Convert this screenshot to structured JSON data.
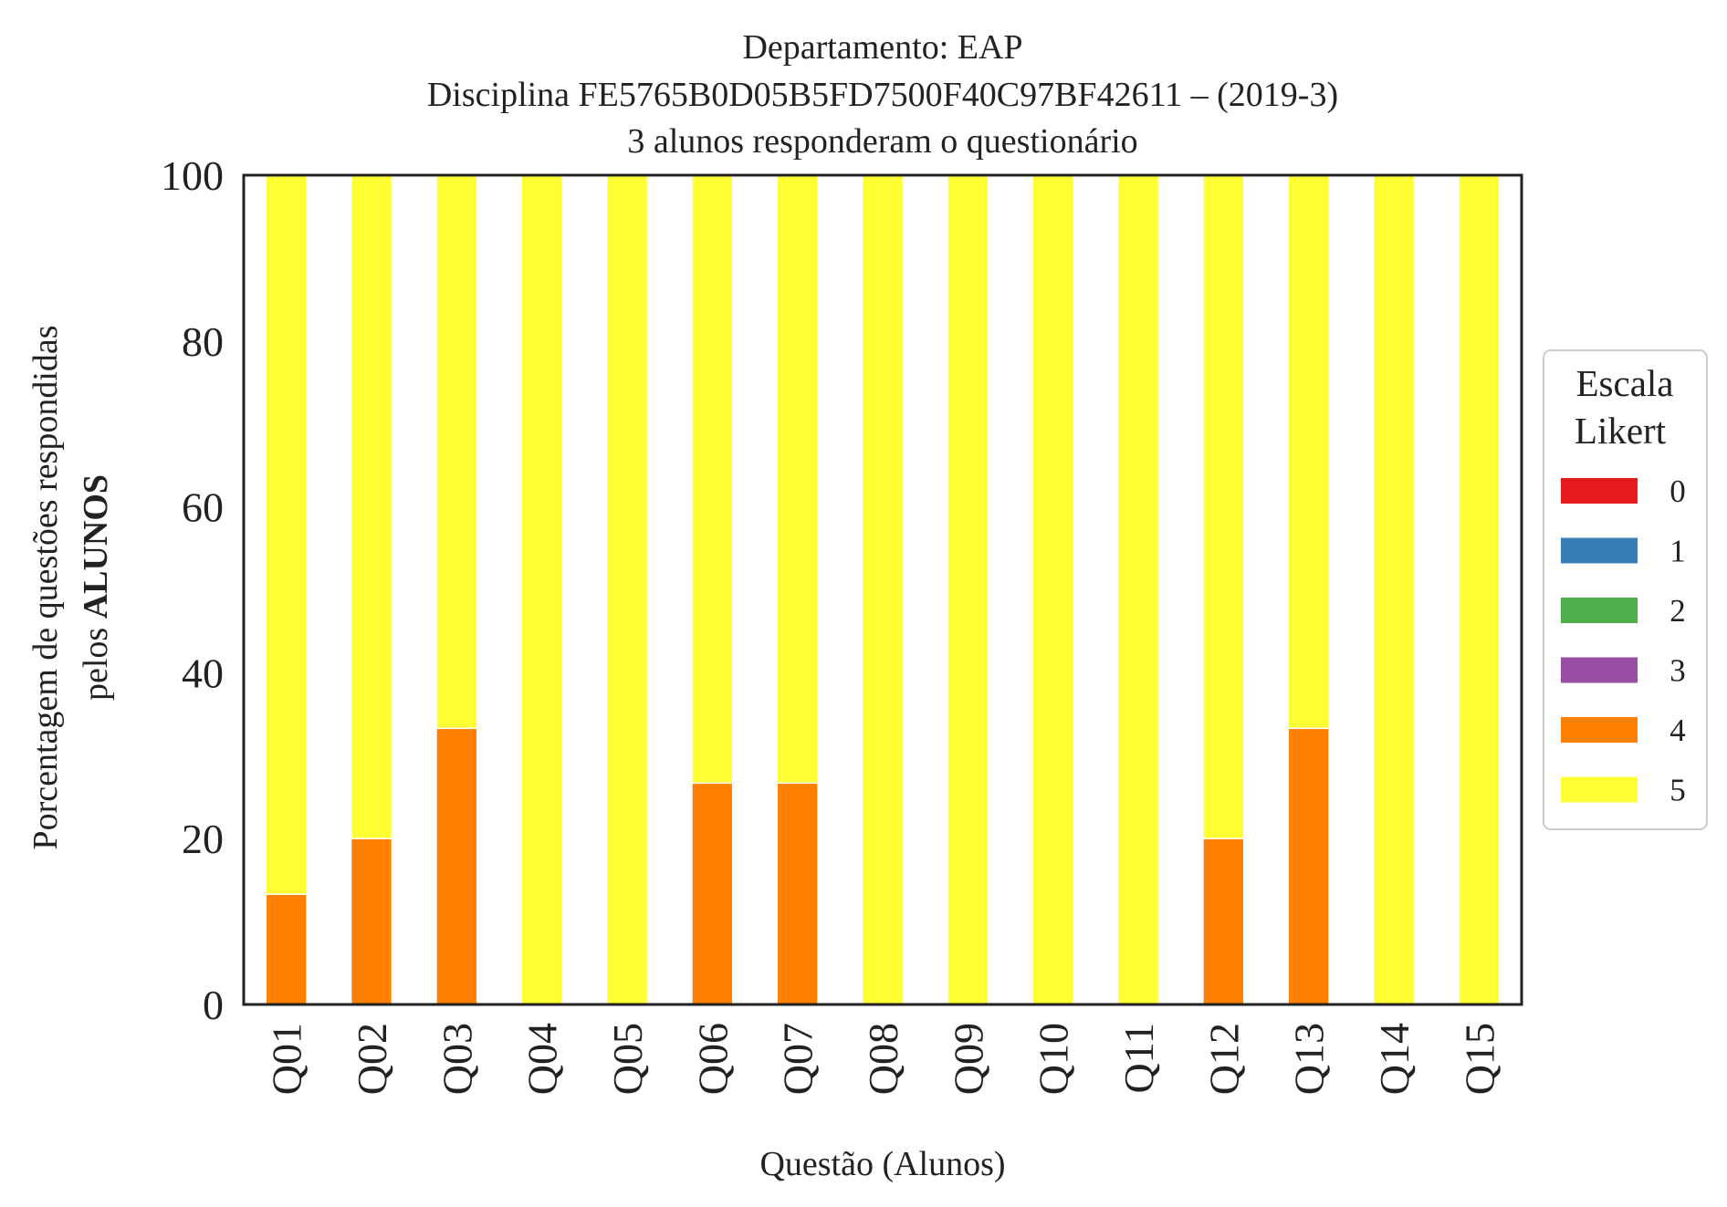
{
  "chart_data": {
    "type": "bar",
    "stacked": true,
    "title_lines": [
      "Departamento: EAP",
      "Disciplina FE5765B0D05B5FD7500F40C97BF42611 – (2019-3)",
      "3 alunos responderam o questionário"
    ],
    "xlabel": "Questão (Alunos)",
    "ylabel_line1": "Porcentagem de questões respondidas",
    "ylabel_line2_prefix": "pelos ",
    "ylabel_line2_bold": "ALUNOS",
    "ylim": [
      0,
      100
    ],
    "yticks": [
      "0",
      "20",
      "40",
      "60",
      "80",
      "100"
    ],
    "categories": [
      "Q01",
      "Q02",
      "Q03",
      "Q04",
      "Q05",
      "Q06",
      "Q07",
      "Q08",
      "Q09",
      "Q10",
      "Q11",
      "Q12",
      "Q13",
      "Q14",
      "Q15"
    ],
    "series": [
      {
        "name": "0",
        "color": "#e41a1c",
        "values": [
          0,
          0,
          0,
          0,
          0,
          0,
          0,
          0,
          0,
          0,
          0,
          0,
          0,
          0,
          0
        ]
      },
      {
        "name": "1",
        "color": "#377eb8",
        "values": [
          0,
          0,
          0,
          0,
          0,
          0,
          0,
          0,
          0,
          0,
          0,
          0,
          0,
          0,
          0
        ]
      },
      {
        "name": "2",
        "color": "#4daf4a",
        "values": [
          0,
          0,
          0,
          0,
          0,
          0,
          0,
          0,
          0,
          0,
          0,
          0,
          0,
          0,
          0
        ]
      },
      {
        "name": "3",
        "color": "#984ea3",
        "values": [
          0,
          0,
          0,
          0,
          0,
          0,
          0,
          0,
          0,
          0,
          0,
          0,
          0,
          0,
          0
        ]
      },
      {
        "name": "4",
        "color": "#ff7f00",
        "values": [
          13.3,
          20,
          33.3,
          0,
          0,
          26.7,
          26.7,
          0,
          0,
          0,
          0,
          20,
          33.3,
          0,
          0
        ]
      },
      {
        "name": "5",
        "color": "#ffff33",
        "values": [
          86.7,
          80,
          66.7,
          100,
          100,
          73.3,
          73.3,
          100,
          100,
          100,
          100,
          80,
          66.7,
          100,
          100
        ]
      }
    ],
    "legend": {
      "title_lines": [
        "Escala",
        "Likert"
      ],
      "placement": "center-right"
    },
    "grid": false
  }
}
